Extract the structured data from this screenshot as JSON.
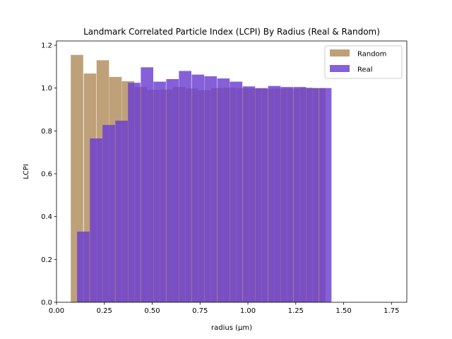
{
  "chart_data": {
    "type": "bar",
    "title": "Landmark Correlated Particle Index (LCPI) By Radius (Real & Random)",
    "xlabel": "radius (µm)",
    "ylabel": "LCPI",
    "xlim": [
      0.0,
      1.83
    ],
    "ylim": [
      0.0,
      1.22
    ],
    "xticks": [
      0.0,
      0.25,
      0.5,
      0.75,
      1.0,
      1.25,
      1.5,
      1.75
    ],
    "xtick_labels": [
      "0.00",
      "0.25",
      "0.50",
      "0.75",
      "1.00",
      "1.25",
      "1.50",
      "1.75"
    ],
    "yticks": [
      0.0,
      0.2,
      0.4,
      0.6,
      0.8,
      1.0,
      1.2
    ],
    "ytick_labels": [
      "0.0",
      "0.2",
      "0.4",
      "0.6",
      "0.8",
      "1.0",
      "1.2"
    ],
    "bar_width": 0.065,
    "legend_position": "top-right",
    "series": [
      {
        "name": "Random",
        "color": "#b8976a",
        "opacity": 0.9,
        "x": [
          0.107,
          0.175,
          0.242,
          0.308,
          0.374,
          0.441,
          0.507,
          0.574,
          0.64,
          0.707,
          0.773,
          0.84,
          0.906,
          0.973,
          1.039,
          1.106,
          1.172,
          1.239,
          1.305,
          1.372
        ],
        "values": [
          1.155,
          1.068,
          1.13,
          1.052,
          1.032,
          1.005,
          0.992,
          0.993,
          1.005,
          0.998,
          0.99,
          1.0,
          1.002,
          1.0,
          0.998,
          0.997,
          0.998,
          0.998,
          1.002,
          1.0
        ]
      },
      {
        "name": "Real",
        "color": "#6a3dd1",
        "opacity": 0.82,
        "x": [
          0.14,
          0.207,
          0.273,
          0.34,
          0.406,
          0.473,
          0.539,
          0.606,
          0.672,
          0.739,
          0.805,
          0.872,
          0.938,
          1.005,
          1.071,
          1.138,
          1.204,
          1.271,
          1.337,
          1.404
        ],
        "values": [
          0.33,
          0.765,
          0.828,
          0.848,
          1.025,
          1.097,
          1.03,
          1.042,
          1.08,
          1.063,
          1.055,
          1.045,
          1.03,
          1.008,
          1.0,
          1.01,
          1.005,
          1.005,
          1.0,
          1.0
        ]
      }
    ]
  }
}
